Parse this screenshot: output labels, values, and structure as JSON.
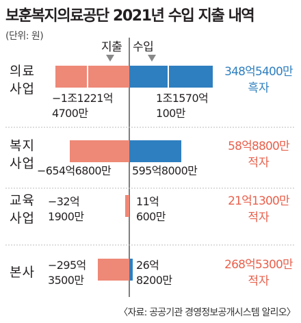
{
  "title": "보훈복지의료공단 2021년 수입 지출 내역",
  "unit_note": "(단위: 원)",
  "source": "〈자료: 공공기관 경영정보공개시스템 알리오〉",
  "legend": {
    "expense": "지출",
    "income": "수입"
  },
  "colors": {
    "expense": "#ee8877",
    "income": "#2e7fbf",
    "deficit_text": "#e8604c",
    "surplus_text": "#2e7fbf",
    "axis": "#555555"
  },
  "chart_data": {
    "type": "bar",
    "title": "보훈복지의료공단 2021년 수입 지출 내역",
    "unit": "원",
    "categories": [
      "의료 사업",
      "복지 사업",
      "교육 사업",
      "본사"
    ],
    "series": [
      {
        "name": "지출",
        "values_억원": [
          -11221.47,
          -654.68,
          -32.19,
          -295.35
        ]
      },
      {
        "name": "수입",
        "values_억원": [
          11570.01,
          595.8,
          11.06,
          26.82
        ]
      }
    ],
    "rows": [
      {
        "label": [
          "의료",
          "사업"
        ],
        "expense_label": [
          "−1조1221억",
          "4700만"
        ],
        "income_label": [
          "1조1570억",
          "100만"
        ],
        "balance_label": [
          "348억5400만",
          "흑자"
        ],
        "balance_type": "surplus",
        "expense_value": 11221.47,
        "income_value": 11570.01
      },
      {
        "label": [
          "복지",
          "사업"
        ],
        "expense_label": [
          "−654억6800만"
        ],
        "income_label": [
          "595억8000만"
        ],
        "balance_label": [
          "58억8800만",
          "적자"
        ],
        "balance_type": "deficit",
        "expense_value": 654.68,
        "income_value": 595.8
      },
      {
        "label": [
          "교육",
          "사업"
        ],
        "expense_label": [
          "−32억",
          "1900만"
        ],
        "income_label": [
          "11억",
          "600만"
        ],
        "balance_label": [
          "21억1300만",
          "적자"
        ],
        "balance_type": "deficit",
        "expense_value": 32.19,
        "income_value": 11.06
      },
      {
        "label": [
          "본사"
        ],
        "expense_label": [
          "−295억",
          "3500만"
        ],
        "income_label": [
          "26억",
          "8200만"
        ],
        "balance_label": [
          "268억5300만",
          "적자"
        ],
        "balance_type": "deficit",
        "expense_value": 295.35,
        "income_value": 26.82
      }
    ]
  }
}
